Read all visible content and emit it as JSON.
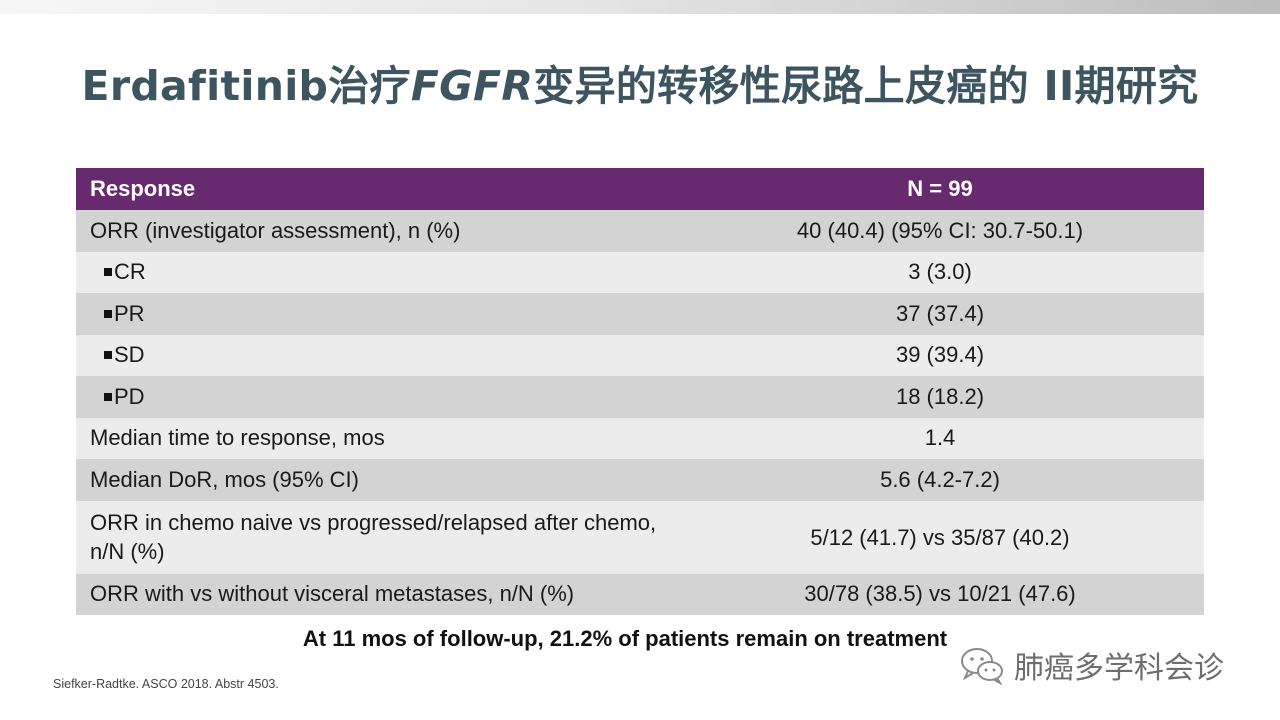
{
  "title": {
    "prefix": "Erdafitinib治疗",
    "gene": "FGFR",
    "suffix": "变异的转移性尿路上皮癌的 II期研究"
  },
  "table": {
    "header": {
      "label": "Response",
      "value": "N = 99"
    },
    "rows": [
      {
        "label": "ORR (investigator assessment), n (%)",
        "value": "40 (40.4) (95% CI: 30.7-50.1)"
      },
      {
        "label": "CR",
        "value": "3 (3.0)"
      },
      {
        "label": "PR",
        "value": "37 (37.4)"
      },
      {
        "label": "SD",
        "value": "39 (39.4)"
      },
      {
        "label": "PD",
        "value": "18 (18.2)"
      },
      {
        "label": "Median time to response, mos",
        "value": "1.4"
      },
      {
        "label": "Median DoR, mos (95% CI)",
        "value": "5.6 (4.2-7.2)"
      },
      {
        "label": "ORR in chemo naive vs progressed/relapsed after chemo, n/N (%)",
        "value": "5/12 (41.7) vs 35/87 (40.2)"
      },
      {
        "label": "ORR with vs without visceral metastases, n/N (%)",
        "value": "30/78 (38.5) vs 10/21 (47.6)"
      }
    ]
  },
  "footnote": "At 11 mos of follow-up, 21.2% of patients remain on treatment",
  "citation": "Siefker-Radtke. ASCO 2018. Abstr 4503.",
  "watermark": {
    "icon": "wechat-icon",
    "text": "肺癌多学科会诊"
  },
  "colors": {
    "header_bg": "#672a6e",
    "title": "#3d5560",
    "row_dark": "#d3d3d3",
    "row_light": "#ececec"
  }
}
